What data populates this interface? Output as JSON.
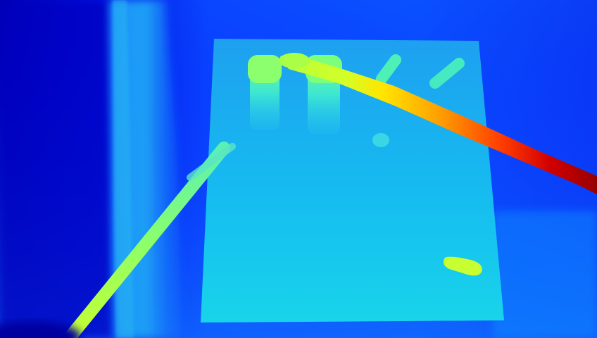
{
  "image": {
    "kind": "depth-map",
    "colormap": "jet",
    "colors": {
      "far_deep": "#0000b4",
      "far": "#0a28f0",
      "mid_far": "#0a64ff",
      "board_top": "#1ea0f0",
      "board_bottom": "#14d2f0",
      "mid": "#37f0c8",
      "mid_near": "#b4ff3c",
      "near": "#ffdc00",
      "nearer": "#ff7800",
      "nearest": "#a00000"
    }
  }
}
